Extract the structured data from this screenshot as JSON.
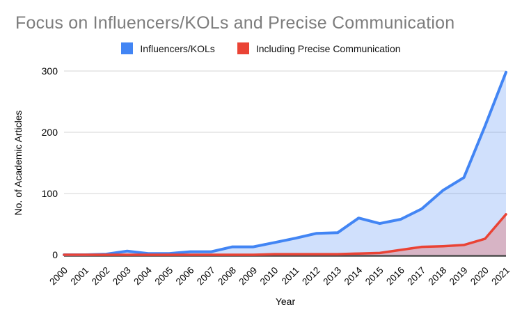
{
  "title": "Focus on Influencers/KOLs and Precise Communication",
  "legend": [
    {
      "label": "Influencers/KOLs",
      "color": "#4285F4"
    },
    {
      "label": "Including Precise Communication",
      "color": "#EA4335"
    }
  ],
  "chart_data": {
    "type": "area",
    "title": "Focus on Influencers/KOLs and Precise Communication",
    "xlabel": "Year",
    "ylabel": "No. of Academic Articles",
    "categories": [
      "2000",
      "2001",
      "2002",
      "2003",
      "2004",
      "2005",
      "2006",
      "2007",
      "2008",
      "2009",
      "2010",
      "2011",
      "2012",
      "2013",
      "2014",
      "2015",
      "2016",
      "2017",
      "2018",
      "2019",
      "2020",
      "2021"
    ],
    "series": [
      {
        "name": "Influencers/KOLs",
        "color": "#4285F4",
        "fill": "rgba(66,133,244,0.25)",
        "values": [
          0,
          0,
          1,
          6,
          2,
          2,
          5,
          5,
          13,
          13,
          20,
          27,
          35,
          36,
          60,
          51,
          58,
          75,
          105,
          126,
          210,
          298
        ]
      },
      {
        "name": "Including Precise Communication",
        "color": "#EA4335",
        "fill": "rgba(234,67,53,0.28)",
        "values": [
          0,
          0,
          0,
          0,
          0,
          0,
          0,
          0,
          0,
          0,
          1,
          1,
          1,
          1,
          2,
          3,
          8,
          13,
          14,
          16,
          26,
          66
        ]
      }
    ],
    "yticks": [
      0,
      100,
      200,
      300
    ],
    "ylim": [
      0,
      300
    ],
    "grid": "horizontal",
    "legend_position": "top",
    "colors": {
      "gridline": "#e4e4e4",
      "axis_line": "#4d4d4d",
      "tick_label": "#000000",
      "title": "#7d7d7d"
    }
  }
}
